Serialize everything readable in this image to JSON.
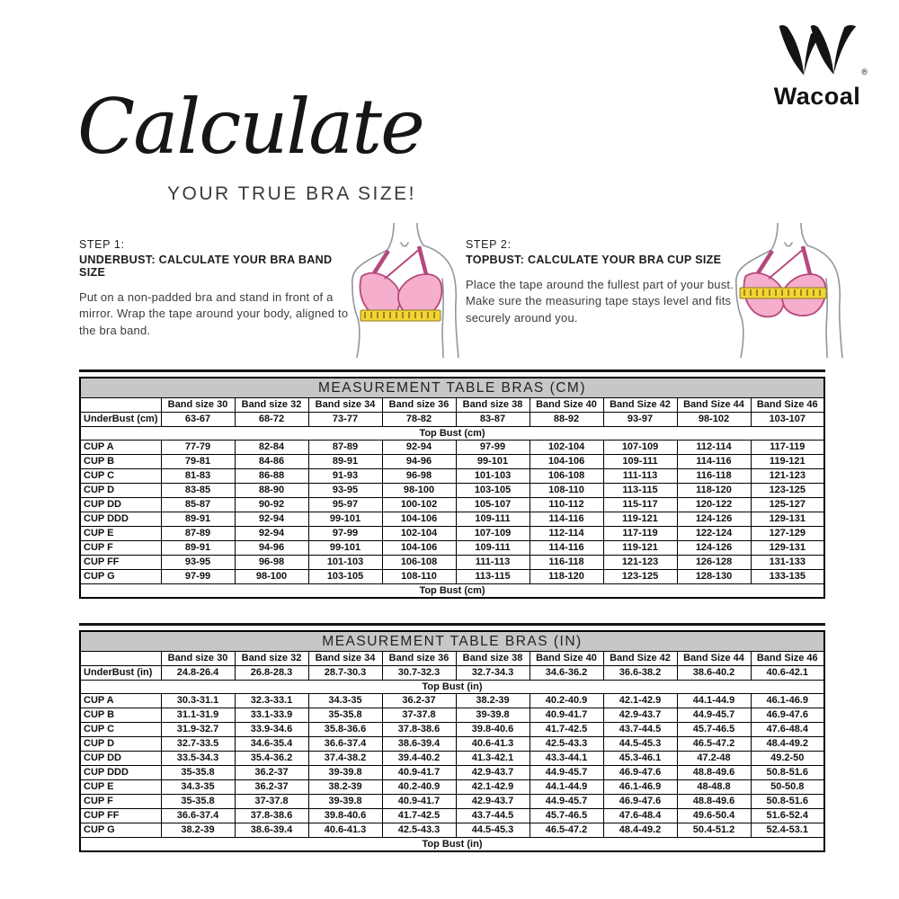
{
  "brand": {
    "name": "Wacoal",
    "registered": "®"
  },
  "header": {
    "script_title": "Calculate",
    "subtitle": "YOUR TRUE BRA SIZE!"
  },
  "steps": [
    {
      "label": "STEP 1:",
      "heading": "UNDERBUST: CALCULATE YOUR BRA BAND SIZE",
      "body": "Put on a non-padded bra and stand in front of a mirror. Wrap the tape around your body, aligned to the bra band.",
      "illustration": "underbust-measure-illustration"
    },
    {
      "label": "STEP 2:",
      "heading": "TOPBUST: CALCULATE YOUR BRA CUP SIZE",
      "body": "Place the tape around the fullest part of your bust. Make sure the measuring tape stays level and fits securely around you.",
      "illustration": "topbust-measure-illustration"
    }
  ],
  "tables": [
    {
      "title": "MEASUREMENT TABLE BRAS (CM)",
      "band_headers": [
        "Band size 30",
        "Band size 32",
        "Band size 34",
        "Band size 36",
        "Band size 38",
        "Band Size 40",
        "Band Size 42",
        "Band Size 44",
        "Band Size 46"
      ],
      "underbust_label": "UnderBust (cm)",
      "underbust_values": [
        "63-67",
        "68-72",
        "73-77",
        "78-82",
        "83-87",
        "88-92",
        "93-97",
        "98-102",
        "103-107"
      ],
      "topbust_label": "Top Bust (cm)",
      "cup_rows": [
        {
          "label": "CUP A",
          "values": [
            "77-79",
            "82-84",
            "87-89",
            "92-94",
            "97-99",
            "102-104",
            "107-109",
            "112-114",
            "117-119"
          ]
        },
        {
          "label": "CUP B",
          "values": [
            "79-81",
            "84-86",
            "89-91",
            "94-96",
            "99-101",
            "104-106",
            "109-111",
            "114-116",
            "119-121"
          ]
        },
        {
          "label": "CUP C",
          "values": [
            "81-83",
            "86-88",
            "91-93",
            "96-98",
            "101-103",
            "106-108",
            "111-113",
            "116-118",
            "121-123"
          ]
        },
        {
          "label": "CUP D",
          "values": [
            "83-85",
            "88-90",
            "93-95",
            "98-100",
            "103-105",
            "108-110",
            "113-115",
            "118-120",
            "123-125"
          ]
        },
        {
          "label": "CUP DD",
          "values": [
            "85-87",
            "90-92",
            "95-97",
            "100-102",
            "105-107",
            "110-112",
            "115-117",
            "120-122",
            "125-127"
          ]
        },
        {
          "label": "CUP DDD",
          "values": [
            "89-91",
            "92-94",
            "99-101",
            "104-106",
            "109-111",
            "114-116",
            "119-121",
            "124-126",
            "129-131"
          ]
        },
        {
          "label": "CUP E",
          "values": [
            "87-89",
            "92-94",
            "97-99",
            "102-104",
            "107-109",
            "112-114",
            "117-119",
            "122-124",
            "127-129"
          ]
        },
        {
          "label": "CUP F",
          "values": [
            "89-91",
            "94-96",
            "99-101",
            "104-106",
            "109-111",
            "114-116",
            "119-121",
            "124-126",
            "129-131"
          ]
        },
        {
          "label": "CUP FF",
          "values": [
            "93-95",
            "96-98",
            "101-103",
            "106-108",
            "111-113",
            "116-118",
            "121-123",
            "126-128",
            "131-133"
          ]
        },
        {
          "label": "CUP G",
          "values": [
            "97-99",
            "98-100",
            "103-105",
            "108-110",
            "113-115",
            "118-120",
            "123-125",
            "128-130",
            "133-135"
          ]
        }
      ]
    },
    {
      "title": "MEASUREMENT TABLE BRAS (IN)",
      "band_headers": [
        "Band size 30",
        "Band size 32",
        "Band size 34",
        "Band size 36",
        "Band size 38",
        "Band Size 40",
        "Band Size 42",
        "Band Size 44",
        "Band Size 46"
      ],
      "underbust_label": "UnderBust (in)",
      "underbust_values": [
        "24.8-26.4",
        "26.8-28.3",
        "28.7-30.3",
        "30.7-32.3",
        "32.7-34.3",
        "34.6-36.2",
        "36.6-38.2",
        "38.6-40.2",
        "40.6-42.1"
      ],
      "topbust_label": "Top Bust (in)",
      "cup_rows": [
        {
          "label": "CUP A",
          "values": [
            "30.3-31.1",
            "32.3-33.1",
            "34.3-35",
            "36.2-37",
            "38.2-39",
            "40.2-40.9",
            "42.1-42.9",
            "44.1-44.9",
            "46.1-46.9"
          ]
        },
        {
          "label": "CUP B",
          "values": [
            "31.1-31.9",
            "33.1-33.9",
            "35-35.8",
            "37-37.8",
            "39-39.8",
            "40.9-41.7",
            "42.9-43.7",
            "44.9-45.7",
            "46.9-47.6"
          ]
        },
        {
          "label": "CUP C",
          "values": [
            "31.9-32.7",
            "33.9-34.6",
            "35.8-36.6",
            "37.8-38.6",
            "39.8-40.6",
            "41.7-42.5",
            "43.7-44.5",
            "45.7-46.5",
            "47.6-48.4"
          ]
        },
        {
          "label": "CUP D",
          "values": [
            "32.7-33.5",
            "34.6-35.4",
            "36.6-37.4",
            "38.6-39.4",
            "40.6-41.3",
            "42.5-43.3",
            "44.5-45.3",
            "46.5-47.2",
            "48.4-49.2"
          ]
        },
        {
          "label": "CUP DD",
          "values": [
            "33.5-34.3",
            "35.4-36.2",
            "37.4-38.2",
            "39.4-40.2",
            "41.3-42.1",
            "43.3-44.1",
            "45.3-46.1",
            "47.2-48",
            "49.2-50"
          ]
        },
        {
          "label": "CUP DDD",
          "values": [
            "35-35.8",
            "36.2-37",
            "39-39.8",
            "40.9-41.7",
            "42.9-43.7",
            "44.9-45.7",
            "46.9-47.6",
            "48.8-49.6",
            "50.8-51.6"
          ]
        },
        {
          "label": "CUP E",
          "values": [
            "34.3-35",
            "36.2-37",
            "38.2-39",
            "40.2-40.9",
            "42.1-42.9",
            "44.1-44.9",
            "46.1-46.9",
            "48-48.8",
            "50-50.8"
          ]
        },
        {
          "label": "CUP F",
          "values": [
            "35-35.8",
            "37-37.8",
            "39-39.8",
            "40.9-41.7",
            "42.9-43.7",
            "44.9-45.7",
            "46.9-47.6",
            "48.8-49.6",
            "50.8-51.6"
          ]
        },
        {
          "label": "CUP FF",
          "values": [
            "36.6-37.4",
            "37.8-38.6",
            "39.8-40.6",
            "41.7-42.5",
            "43.7-44.5",
            "45.7-46.5",
            "47.6-48.4",
            "49.6-50.4",
            "51.6-52.4"
          ]
        },
        {
          "label": "CUP G",
          "values": [
            "38.2-39",
            "38.6-39.4",
            "40.6-41.3",
            "42.5-43.3",
            "44.5-45.3",
            "46.5-47.2",
            "48.4-49.2",
            "50.4-51.2",
            "52.4-53.1"
          ]
        }
      ]
    }
  ],
  "colors": {
    "bra_pink": "#f5aecb",
    "bra_outline": "#b5487d",
    "tape_yellow": "#f3d435",
    "body_outline": "#9196a0",
    "table_title_bg": "#c7c7c7",
    "text": "#1a1a1a"
  }
}
